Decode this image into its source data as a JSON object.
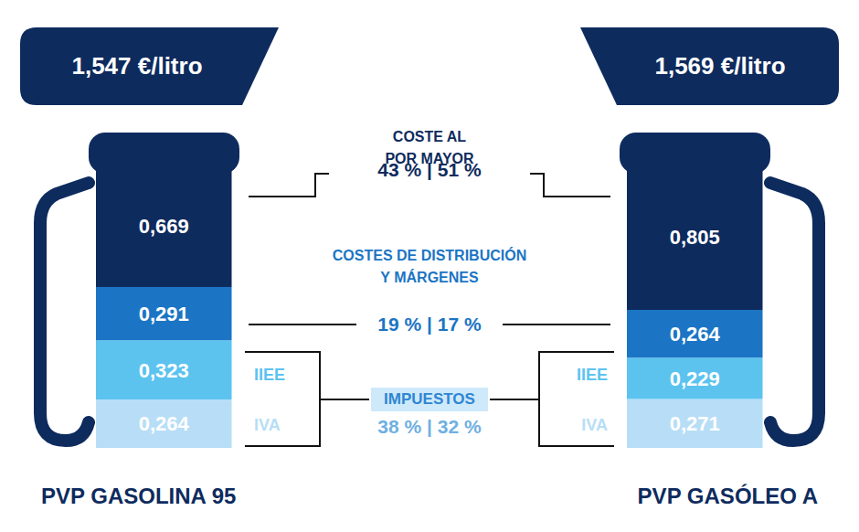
{
  "chart_data": {
    "type": "bar",
    "stacked": true,
    "data_labels": true,
    "tick_labels": false,
    "categories": [
      "PVP GASOLINA 95",
      "PVP GASÓLEO A"
    ],
    "totals": [
      1.547,
      1.569
    ],
    "total_labels": [
      "1,547 €/litro",
      "1,569 €/litro"
    ],
    "series": [
      {
        "name": "IVA",
        "color": "#b7def6",
        "values": [
          0.264,
          0.271
        ],
        "value_labels": [
          "0,264",
          "0,271"
        ]
      },
      {
        "name": "IIEE",
        "color": "#5cc3ef",
        "values": [
          0.323,
          0.229
        ],
        "value_labels": [
          "0,323",
          "0,229"
        ]
      },
      {
        "name": "COSTES DE DISTRIBUCIÓN Y MÁRGENES",
        "color": "#1b75c4",
        "share_text": "19 % | 17 %",
        "values": [
          0.291,
          0.264
        ],
        "value_labels": [
          "0,291",
          "0,264"
        ]
      },
      {
        "name": "COSTE AL POR MAYOR",
        "color": "#0e2b5e",
        "share_text": "43 % | 51 %",
        "values": [
          0.669,
          0.805
        ],
        "value_labels": [
          "0,669",
          "0,805"
        ]
      }
    ],
    "groups": [
      {
        "name": "IMPUESTOS",
        "series": [
          "IIEE",
          "IVA"
        ],
        "share_text": "38 % | 32 %"
      }
    ]
  }
}
